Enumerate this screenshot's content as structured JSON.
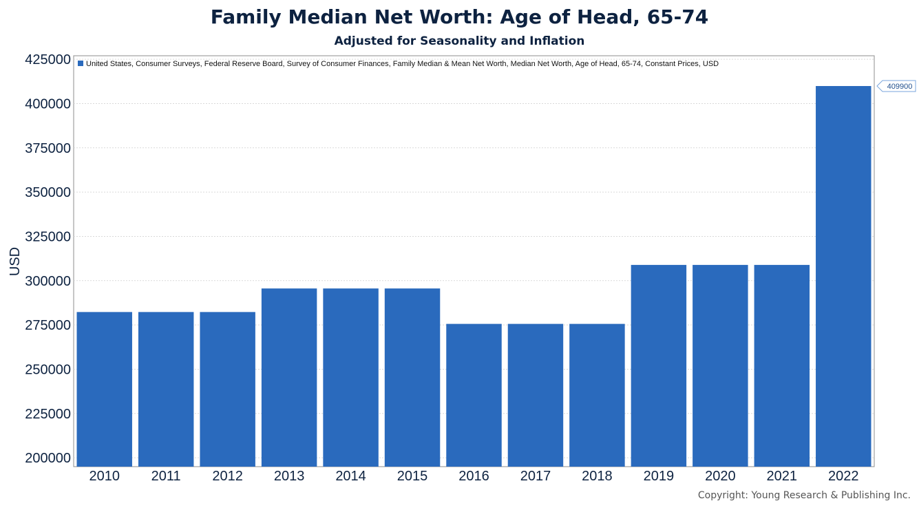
{
  "header": {
    "title": "Family Median Net Worth: Age of Head, 65-74",
    "subtitle": "Adjusted for Seasonality and Inflation"
  },
  "footer": {
    "copyright": "Copyright: Young Research & Publishing Inc."
  },
  "chart_data": {
    "type": "bar",
    "title": "Family Median Net Worth: Age of Head, 65-74",
    "subtitle": "Adjusted for Seasonality and Inflation",
    "xlabel": "",
    "ylabel": "USD",
    "ylim": [
      195000,
      427000
    ],
    "yticks": [
      200000,
      225000,
      250000,
      275000,
      300000,
      325000,
      350000,
      375000,
      400000,
      425000
    ],
    "grid": true,
    "legend_position": "top-left",
    "categories": [
      "2010",
      "2011",
      "2012",
      "2013",
      "2014",
      "2015",
      "2016",
      "2017",
      "2018",
      "2019",
      "2020",
      "2021",
      "2022"
    ],
    "series": [
      {
        "name": "United States, Consumer Surveys, Federal Reserve Board, Survey of Consumer Finances, Family Median & Mean Net Worth, Median Net Worth, Age of Head, 65-74, Constant Prices, USD",
        "color": "#2a6abd",
        "values": [
          282300,
          282300,
          282300,
          295600,
          295600,
          295600,
          275600,
          275600,
          275600,
          308900,
          308900,
          308900,
          409900
        ]
      }
    ],
    "annotations": [
      {
        "category": "2022",
        "label": "409900"
      }
    ]
  }
}
